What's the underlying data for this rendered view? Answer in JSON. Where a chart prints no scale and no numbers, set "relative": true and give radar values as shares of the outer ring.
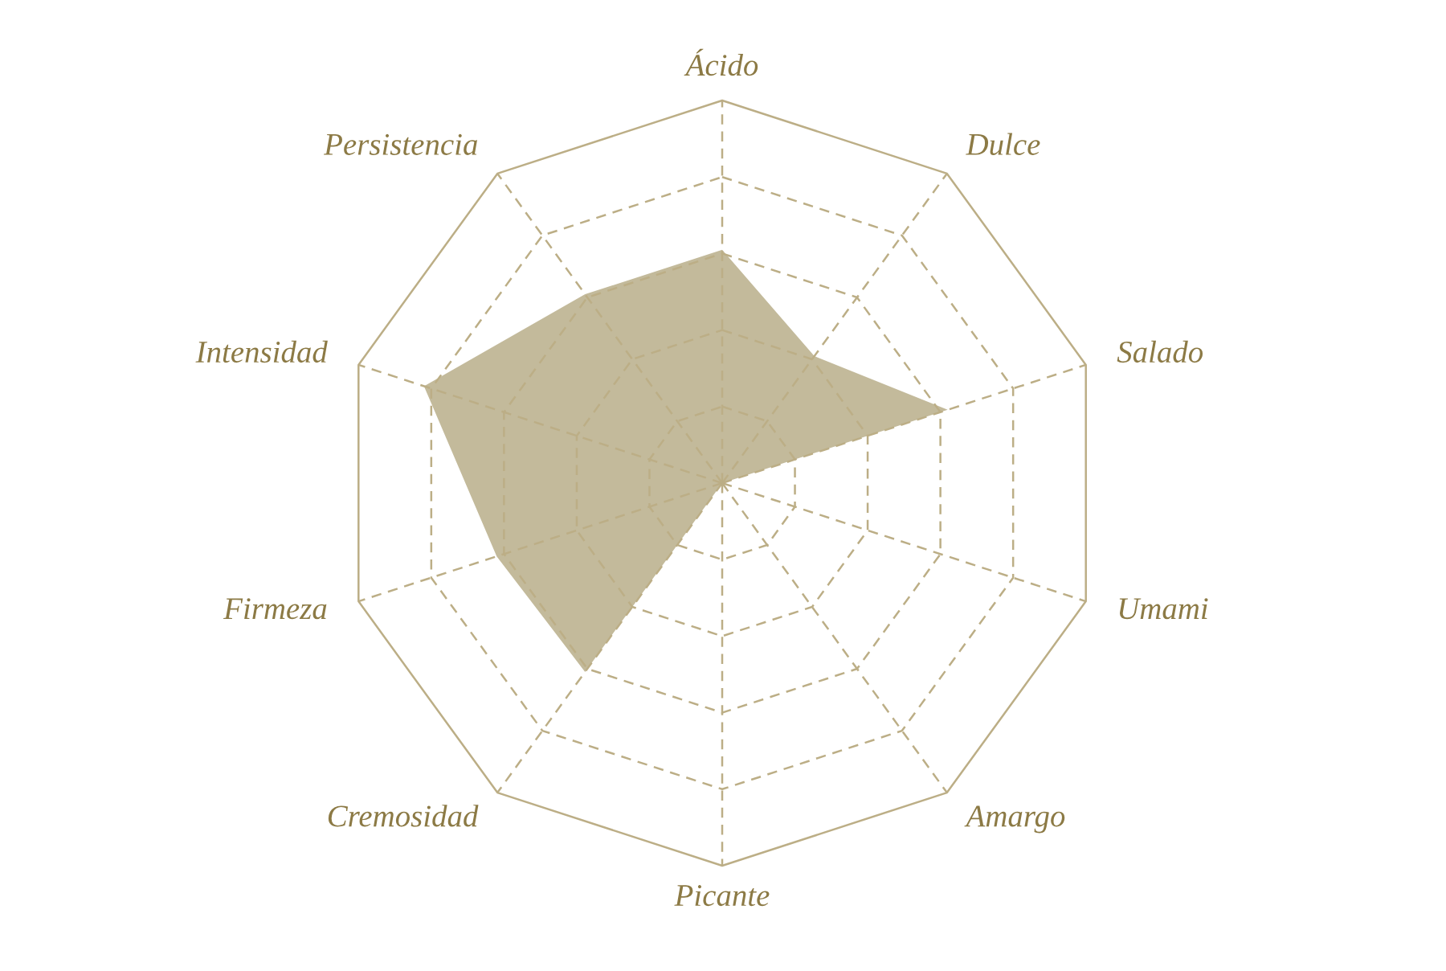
{
  "chart_data": {
    "type": "radar",
    "categories": [
      "Ácido",
      "Dulce",
      "Salado",
      "Umami",
      "Amargo",
      "Picante",
      "Cremosidad",
      "Firmeza",
      "Intensidad",
      "Persistencia"
    ],
    "relative": true,
    "grid": true,
    "series": [
      {
        "color": "#c3ba9b",
        "values": [
          0.61,
          0.41,
          0.62,
          0,
          0,
          0,
          0.61,
          0.62,
          0.82,
          0.61
        ]
      }
    ]
  }
}
